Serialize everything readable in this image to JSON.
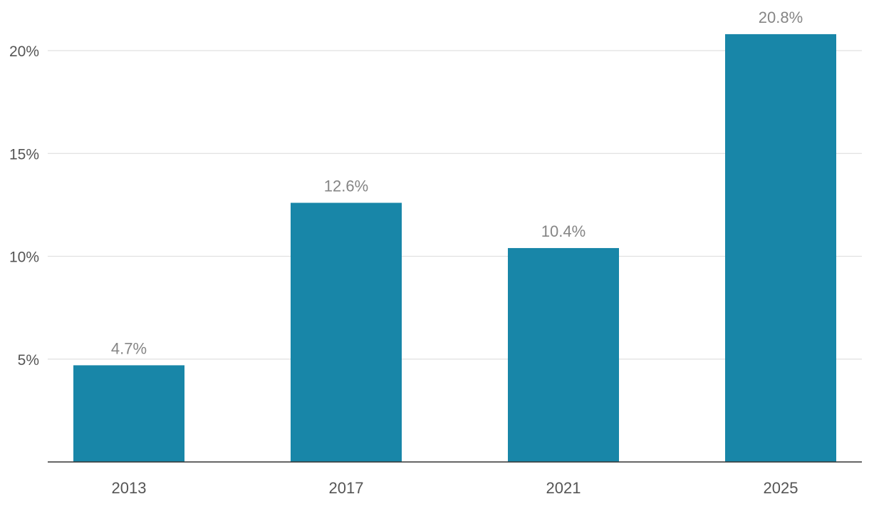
{
  "chart_data": {
    "type": "bar",
    "categories": [
      "2013",
      "2017",
      "2021",
      "2025"
    ],
    "values": [
      4.7,
      12.6,
      10.4,
      20.8
    ],
    "data_labels": [
      "4.7%",
      "12.6%",
      "10.4%",
      "20.8%"
    ],
    "y_ticks": [
      5,
      10,
      15,
      20
    ],
    "y_tick_labels": [
      "5%",
      "10%",
      "15%",
      "20%"
    ],
    "ylim": [
      0,
      22
    ],
    "grid": true,
    "legend": "none",
    "title": "",
    "xlabel": "",
    "ylabel": "",
    "colors": {
      "bar": "#1886a8"
    }
  }
}
